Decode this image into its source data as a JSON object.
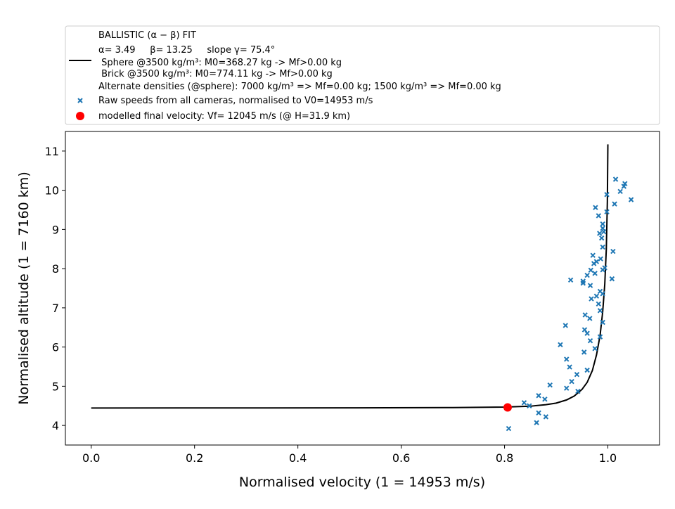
{
  "chart_data": {
    "type": "scatter",
    "xlabel": "Normalised velocity (1 = 14953 m/s)",
    "ylabel": "Normalised altitude (1 = 7160 km)",
    "xlim": [
      -0.05,
      1.1
    ],
    "ylim": [
      3.5,
      11.5
    ],
    "x_ticks": [
      0.0,
      0.2,
      0.4,
      0.6,
      0.8,
      1.0
    ],
    "x_tick_labels": [
      "0.0",
      "0.2",
      "0.4",
      "0.6",
      "0.8",
      "1.0"
    ],
    "y_ticks": [
      4,
      5,
      6,
      7,
      8,
      9,
      10,
      11
    ],
    "y_tick_labels": [
      "4",
      "5",
      "6",
      "7",
      "8",
      "9",
      "10",
      "11"
    ],
    "grid": false,
    "legend": {
      "placement": "above-plot",
      "fit_title": "BALLISTIC (α − β) FIT",
      "fit_line1": "α= 3.49     β= 13.25     slope γ= 75.4°",
      "fit_line2": " Sphere @3500 kg/m³: M0=368.27 kg -> Mf>0.00 kg",
      "fit_line3": " Brick @3500 kg/m³: M0=774.11 kg -> Mf>0.00 kg",
      "fit_line4": "Alternate densities (@sphere): 7000 kg/m³ => Mf=0.00 kg; 1500 kg/m³ => Mf=0.00 kg",
      "raw_label": "Raw speeds from all cameras, normalised to V0=14953 m/s",
      "final_label": "modelled final velocity: Vf= 12045 m/s (@ H=31.9 km)"
    },
    "colors": {
      "fit": "#000000",
      "raw": "#1f77b4",
      "final": "#ff0000"
    },
    "series": [
      {
        "name": "Raw speeds from all cameras, normalised to V0=14953 m/s",
        "type": "scatter",
        "points": [
          [
            0.808,
            3.92
          ],
          [
            0.862,
            4.07
          ],
          [
            0.88,
            4.22
          ],
          [
            0.866,
            4.32
          ],
          [
            0.838,
            4.58
          ],
          [
            0.848,
            4.5
          ],
          [
            0.878,
            4.67
          ],
          [
            0.866,
            4.76
          ],
          [
            0.888,
            5.03
          ],
          [
            0.92,
            4.95
          ],
          [
            0.93,
            5.12
          ],
          [
            0.94,
            5.3
          ],
          [
            0.942,
            4.87
          ],
          [
            0.926,
            5.49
          ],
          [
            0.92,
            5.69
          ],
          [
            0.96,
            5.41
          ],
          [
            0.954,
            5.87
          ],
          [
            0.908,
            6.06
          ],
          [
            0.975,
            5.96
          ],
          [
            0.966,
            6.16
          ],
          [
            0.96,
            6.35
          ],
          [
            0.955,
            6.44
          ],
          [
            0.985,
            6.26
          ],
          [
            0.99,
            6.63
          ],
          [
            0.918,
            6.55
          ],
          [
            0.965,
            6.73
          ],
          [
            0.956,
            6.82
          ],
          [
            0.985,
            6.93
          ],
          [
            0.982,
            7.1
          ],
          [
            0.968,
            7.23
          ],
          [
            0.978,
            7.3
          ],
          [
            0.985,
            7.42
          ],
          [
            0.99,
            7.36
          ],
          [
            0.966,
            7.57
          ],
          [
            0.952,
            7.63
          ],
          [
            0.952,
            7.68
          ],
          [
            0.928,
            7.71
          ],
          [
            0.96,
            7.83
          ],
          [
            0.975,
            7.88
          ],
          [
            0.967,
            7.96
          ],
          [
            0.99,
            7.97
          ],
          [
            0.994,
            8.02
          ],
          [
            0.973,
            8.13
          ],
          [
            0.978,
            8.18
          ],
          [
            0.986,
            8.25
          ],
          [
            0.971,
            8.34
          ],
          [
            1.008,
            7.74
          ],
          [
            1.01,
            8.44
          ],
          [
            0.99,
            8.55
          ],
          [
            0.988,
            8.78
          ],
          [
            0.984,
            8.9
          ],
          [
            0.992,
            8.94
          ],
          [
            0.99,
            9.03
          ],
          [
            0.99,
            9.14
          ],
          [
            0.982,
            9.35
          ],
          [
            0.998,
            9.45
          ],
          [
            0.976,
            9.56
          ],
          [
            1.013,
            9.65
          ],
          [
            0.998,
            9.89
          ],
          [
            1.024,
            9.97
          ],
          [
            1.031,
            10.1
          ],
          [
            1.033,
            10.17
          ],
          [
            1.015,
            10.28
          ],
          [
            1.045,
            9.76
          ]
        ]
      },
      {
        "name": "BALLISTIC (α − β) FIT",
        "type": "line",
        "points": [
          [
            0.0,
            4.445
          ],
          [
            0.3,
            4.446
          ],
          [
            0.5,
            4.448
          ],
          [
            0.7,
            4.455
          ],
          [
            0.8,
            4.468
          ],
          [
            0.85,
            4.49
          ],
          [
            0.88,
            4.53
          ],
          [
            0.9,
            4.57
          ],
          [
            0.92,
            4.65
          ],
          [
            0.935,
            4.75
          ],
          [
            0.95,
            4.92
          ],
          [
            0.96,
            5.1
          ],
          [
            0.97,
            5.4
          ],
          [
            0.978,
            5.8
          ],
          [
            0.985,
            6.3
          ],
          [
            0.99,
            6.9
          ],
          [
            0.994,
            7.6
          ],
          [
            0.997,
            8.5
          ],
          [
            0.999,
            9.7
          ],
          [
            1.0,
            11.17
          ]
        ]
      },
      {
        "name": "modelled final velocity: Vf= 12045 m/s (@ H=31.9 km)",
        "type": "scatter",
        "points": [
          [
            0.806,
            4.46
          ]
        ]
      }
    ]
  }
}
